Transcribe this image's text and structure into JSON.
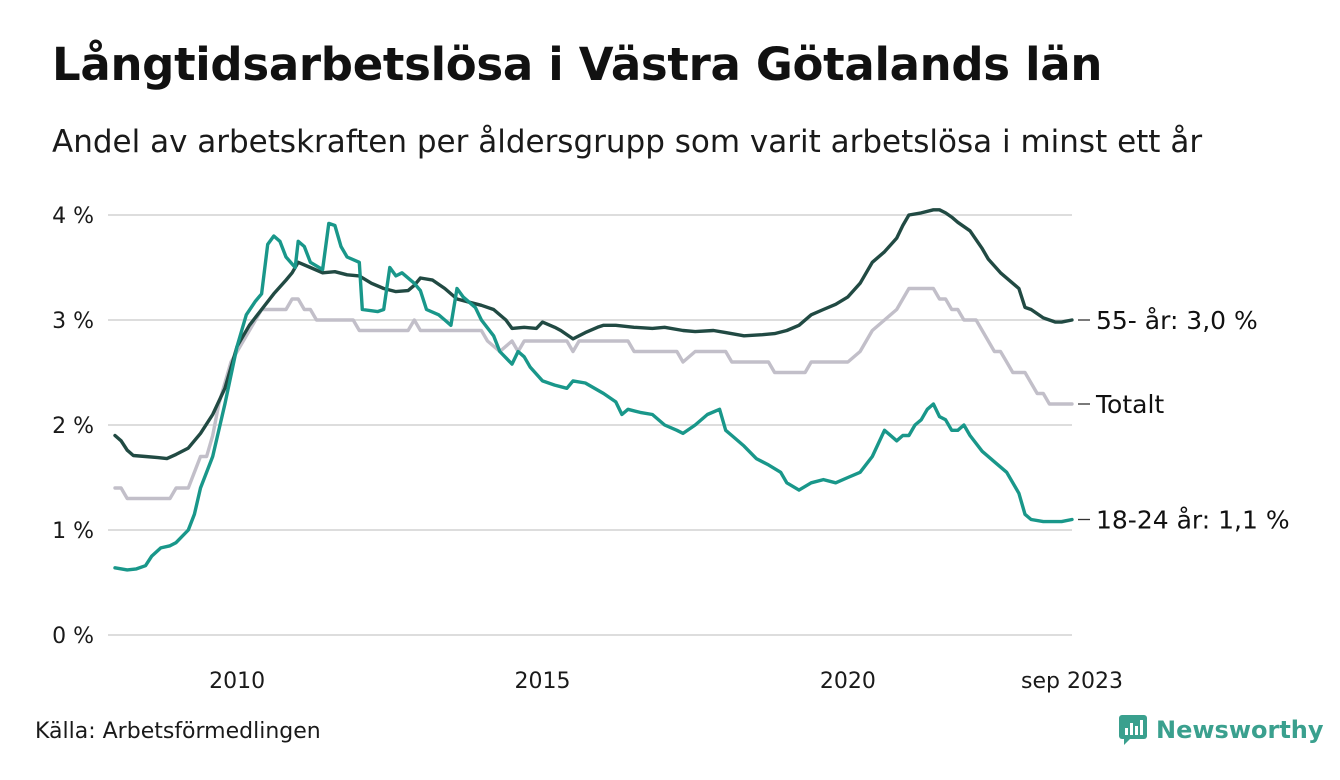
{
  "header": {
    "title": "Långtidsarbetslösa i Västra Götalands län",
    "subtitle": "Andel av arbetskraften per åldersgrupp som varit arbetslösa i minst ett år"
  },
  "footer": {
    "source": "Källa: Arbetsförmedlingen",
    "brand": "Newsworthy"
  },
  "colors": {
    "age55": "#214a43",
    "total": "#c2bfc9",
    "age18": "#19978a",
    "grid": "#dddddd",
    "brand": "#3aa08e"
  },
  "chart_data": {
    "type": "line",
    "title": "Långtidsarbetslösa i Västra Götalands län",
    "subtitle": "Andel av arbetskraften per åldersgrupp som varit arbetslösa i minst ett år",
    "xlabel": "",
    "ylabel": "",
    "xlim": [
      2008.0,
      2023.67
    ],
    "ylim": [
      0,
      4
    ],
    "grid": true,
    "y_ticks": [
      {
        "value": 0,
        "label": "0 %"
      },
      {
        "value": 1,
        "label": "1 %"
      },
      {
        "value": 2,
        "label": "2 %"
      },
      {
        "value": 3,
        "label": "3 %"
      },
      {
        "value": 4,
        "label": "4 %"
      }
    ],
    "x_ticks": [
      {
        "value": 2010,
        "label": "2010"
      },
      {
        "value": 2015,
        "label": "2015"
      },
      {
        "value": 2020,
        "label": "2020"
      },
      {
        "value": 2023.67,
        "label": "sep 2023"
      }
    ],
    "series": [
      {
        "name": "Totalt",
        "label": "Totalt",
        "color_key": "total",
        "points": [
          [
            2008.0,
            1.4
          ],
          [
            2008.1,
            1.4
          ],
          [
            2008.2,
            1.3
          ],
          [
            2008.5,
            1.3
          ],
          [
            2008.8,
            1.3
          ],
          [
            2008.9,
            1.3
          ],
          [
            2009.0,
            1.4
          ],
          [
            2009.2,
            1.4
          ],
          [
            2009.4,
            1.7
          ],
          [
            2009.5,
            1.7
          ],
          [
            2009.6,
            1.9
          ],
          [
            2009.7,
            2.2
          ],
          [
            2009.8,
            2.4
          ],
          [
            2009.9,
            2.6
          ],
          [
            2010.0,
            2.7
          ],
          [
            2010.2,
            2.9
          ],
          [
            2010.3,
            3.0
          ],
          [
            2010.4,
            3.1
          ],
          [
            2010.6,
            3.1
          ],
          [
            2010.8,
            3.1
          ],
          [
            2010.9,
            3.2
          ],
          [
            2011.0,
            3.2
          ],
          [
            2011.1,
            3.1
          ],
          [
            2011.2,
            3.1
          ],
          [
            2011.3,
            3.0
          ],
          [
            2011.6,
            3.0
          ],
          [
            2011.8,
            3.0
          ],
          [
            2011.9,
            3.0
          ],
          [
            2012.0,
            2.9
          ],
          [
            2012.3,
            2.9
          ],
          [
            2012.6,
            2.9
          ],
          [
            2012.8,
            2.9
          ],
          [
            2012.9,
            3.0
          ],
          [
            2013.0,
            2.9
          ],
          [
            2013.3,
            2.9
          ],
          [
            2013.6,
            2.9
          ],
          [
            2013.9,
            2.9
          ],
          [
            2014.0,
            2.9
          ],
          [
            2014.1,
            2.8
          ],
          [
            2014.3,
            2.7
          ],
          [
            2014.5,
            2.8
          ],
          [
            2014.6,
            2.7
          ],
          [
            2014.7,
            2.8
          ],
          [
            2015.0,
            2.8
          ],
          [
            2015.4,
            2.8
          ],
          [
            2015.5,
            2.7
          ],
          [
            2015.6,
            2.8
          ],
          [
            2016.0,
            2.8
          ],
          [
            2016.4,
            2.8
          ],
          [
            2016.5,
            2.7
          ],
          [
            2016.9,
            2.7
          ],
          [
            2017.2,
            2.7
          ],
          [
            2017.3,
            2.6
          ],
          [
            2017.5,
            2.7
          ],
          [
            2018.0,
            2.7
          ],
          [
            2018.1,
            2.6
          ],
          [
            2018.5,
            2.6
          ],
          [
            2018.7,
            2.6
          ],
          [
            2018.8,
            2.5
          ],
          [
            2019.0,
            2.5
          ],
          [
            2019.3,
            2.5
          ],
          [
            2019.4,
            2.6
          ],
          [
            2019.6,
            2.6
          ],
          [
            2020.0,
            2.6
          ],
          [
            2020.2,
            2.7
          ],
          [
            2020.3,
            2.8
          ],
          [
            2020.4,
            2.9
          ],
          [
            2020.6,
            3.0
          ],
          [
            2020.8,
            3.1
          ],
          [
            2020.9,
            3.2
          ],
          [
            2021.0,
            3.3
          ],
          [
            2021.2,
            3.3
          ],
          [
            2021.4,
            3.3
          ],
          [
            2021.5,
            3.2
          ],
          [
            2021.6,
            3.2
          ],
          [
            2021.7,
            3.1
          ],
          [
            2021.8,
            3.1
          ],
          [
            2021.9,
            3.0
          ],
          [
            2022.1,
            3.0
          ],
          [
            2022.2,
            2.9
          ],
          [
            2022.3,
            2.8
          ],
          [
            2022.4,
            2.7
          ],
          [
            2022.5,
            2.7
          ],
          [
            2022.6,
            2.6
          ],
          [
            2022.7,
            2.5
          ],
          [
            2022.9,
            2.5
          ],
          [
            2023.0,
            2.4
          ],
          [
            2023.1,
            2.3
          ],
          [
            2023.2,
            2.3
          ],
          [
            2023.3,
            2.2
          ],
          [
            2023.5,
            2.2
          ],
          [
            2023.67,
            2.2
          ]
        ]
      },
      {
        "name": "55- år",
        "label": "55- år: 3,0 %",
        "color_key": "age55",
        "points": [
          [
            2008.0,
            1.9
          ],
          [
            2008.1,
            1.85
          ],
          [
            2008.2,
            1.76
          ],
          [
            2008.3,
            1.71
          ],
          [
            2008.5,
            1.7
          ],
          [
            2008.7,
            1.69
          ],
          [
            2008.85,
            1.68
          ],
          [
            2009.0,
            1.72
          ],
          [
            2009.2,
            1.78
          ],
          [
            2009.4,
            1.92
          ],
          [
            2009.6,
            2.1
          ],
          [
            2009.8,
            2.35
          ],
          [
            2010.0,
            2.75
          ],
          [
            2010.2,
            2.95
          ],
          [
            2010.4,
            3.1
          ],
          [
            2010.6,
            3.25
          ],
          [
            2010.8,
            3.38
          ],
          [
            2010.9,
            3.45
          ],
          [
            2011.0,
            3.55
          ],
          [
            2011.2,
            3.5
          ],
          [
            2011.4,
            3.45
          ],
          [
            2011.6,
            3.46
          ],
          [
            2011.8,
            3.43
          ],
          [
            2012.0,
            3.42
          ],
          [
            2012.2,
            3.35
          ],
          [
            2012.4,
            3.3
          ],
          [
            2012.6,
            3.27
          ],
          [
            2012.8,
            3.28
          ],
          [
            2012.9,
            3.33
          ],
          [
            2013.0,
            3.4
          ],
          [
            2013.2,
            3.38
          ],
          [
            2013.4,
            3.3
          ],
          [
            2013.6,
            3.2
          ],
          [
            2013.8,
            3.17
          ],
          [
            2014.0,
            3.14
          ],
          [
            2014.2,
            3.1
          ],
          [
            2014.4,
            3.0
          ],
          [
            2014.5,
            2.92
          ],
          [
            2014.7,
            2.93
          ],
          [
            2014.9,
            2.92
          ],
          [
            2015.0,
            2.98
          ],
          [
            2015.2,
            2.93
          ],
          [
            2015.3,
            2.9
          ],
          [
            2015.5,
            2.82
          ],
          [
            2015.7,
            2.88
          ],
          [
            2015.9,
            2.93
          ],
          [
            2016.0,
            2.95
          ],
          [
            2016.2,
            2.95
          ],
          [
            2016.5,
            2.93
          ],
          [
            2016.8,
            2.92
          ],
          [
            2017.0,
            2.93
          ],
          [
            2017.3,
            2.9
          ],
          [
            2017.5,
            2.89
          ],
          [
            2017.8,
            2.9
          ],
          [
            2018.0,
            2.88
          ],
          [
            2018.3,
            2.85
          ],
          [
            2018.6,
            2.86
          ],
          [
            2018.8,
            2.87
          ],
          [
            2019.0,
            2.9
          ],
          [
            2019.2,
            2.95
          ],
          [
            2019.4,
            3.05
          ],
          [
            2019.6,
            3.1
          ],
          [
            2019.8,
            3.15
          ],
          [
            2020.0,
            3.22
          ],
          [
            2020.2,
            3.35
          ],
          [
            2020.4,
            3.55
          ],
          [
            2020.6,
            3.65
          ],
          [
            2020.8,
            3.78
          ],
          [
            2020.9,
            3.9
          ],
          [
            2021.0,
            4.0
          ],
          [
            2021.2,
            4.02
          ],
          [
            2021.4,
            4.05
          ],
          [
            2021.5,
            4.05
          ],
          [
            2021.6,
            4.02
          ],
          [
            2021.7,
            3.98
          ],
          [
            2021.8,
            3.93
          ],
          [
            2022.0,
            3.85
          ],
          [
            2022.2,
            3.68
          ],
          [
            2022.3,
            3.58
          ],
          [
            2022.5,
            3.45
          ],
          [
            2022.7,
            3.35
          ],
          [
            2022.8,
            3.3
          ],
          [
            2022.9,
            3.12
          ],
          [
            2023.0,
            3.1
          ],
          [
            2023.2,
            3.02
          ],
          [
            2023.4,
            2.98
          ],
          [
            2023.5,
            2.98
          ],
          [
            2023.67,
            3.0
          ]
        ]
      },
      {
        "name": "18-24 år",
        "label": "18-24 år: 1,1 %",
        "color_key": "age18",
        "points": [
          [
            2008.0,
            0.64
          ],
          [
            2008.2,
            0.62
          ],
          [
            2008.35,
            0.63
          ],
          [
            2008.5,
            0.66
          ],
          [
            2008.6,
            0.75
          ],
          [
            2008.75,
            0.83
          ],
          [
            2008.9,
            0.85
          ],
          [
            2009.0,
            0.88
          ],
          [
            2009.2,
            1.0
          ],
          [
            2009.3,
            1.15
          ],
          [
            2009.4,
            1.4
          ],
          [
            2009.6,
            1.7
          ],
          [
            2009.8,
            2.2
          ],
          [
            2010.0,
            2.75
          ],
          [
            2010.15,
            3.05
          ],
          [
            2010.3,
            3.18
          ],
          [
            2010.4,
            3.25
          ],
          [
            2010.5,
            3.72
          ],
          [
            2010.6,
            3.8
          ],
          [
            2010.7,
            3.75
          ],
          [
            2010.8,
            3.6
          ],
          [
            2010.95,
            3.5
          ],
          [
            2011.0,
            3.75
          ],
          [
            2011.1,
            3.7
          ],
          [
            2011.2,
            3.55
          ],
          [
            2011.4,
            3.48
          ],
          [
            2011.5,
            3.92
          ],
          [
            2011.6,
            3.9
          ],
          [
            2011.7,
            3.7
          ],
          [
            2011.8,
            3.6
          ],
          [
            2012.0,
            3.55
          ],
          [
            2012.05,
            3.1
          ],
          [
            2012.3,
            3.08
          ],
          [
            2012.4,
            3.1
          ],
          [
            2012.5,
            3.5
          ],
          [
            2012.6,
            3.42
          ],
          [
            2012.7,
            3.45
          ],
          [
            2012.9,
            3.35
          ],
          [
            2013.0,
            3.28
          ],
          [
            2013.1,
            3.1
          ],
          [
            2013.3,
            3.05
          ],
          [
            2013.4,
            3.0
          ],
          [
            2013.5,
            2.95
          ],
          [
            2013.6,
            3.3
          ],
          [
            2013.7,
            3.22
          ],
          [
            2013.9,
            3.12
          ],
          [
            2014.0,
            3.0
          ],
          [
            2014.2,
            2.85
          ],
          [
            2014.3,
            2.7
          ],
          [
            2014.5,
            2.58
          ],
          [
            2014.6,
            2.7
          ],
          [
            2014.7,
            2.65
          ],
          [
            2014.8,
            2.55
          ],
          [
            2015.0,
            2.42
          ],
          [
            2015.2,
            2.38
          ],
          [
            2015.4,
            2.35
          ],
          [
            2015.5,
            2.42
          ],
          [
            2015.7,
            2.4
          ],
          [
            2016.0,
            2.3
          ],
          [
            2016.2,
            2.22
          ],
          [
            2016.3,
            2.1
          ],
          [
            2016.4,
            2.15
          ],
          [
            2016.6,
            2.12
          ],
          [
            2016.8,
            2.1
          ],
          [
            2017.0,
            2.0
          ],
          [
            2017.2,
            1.95
          ],
          [
            2017.3,
            1.92
          ],
          [
            2017.5,
            2.0
          ],
          [
            2017.7,
            2.1
          ],
          [
            2017.9,
            2.15
          ],
          [
            2018.0,
            1.95
          ],
          [
            2018.1,
            1.9
          ],
          [
            2018.3,
            1.8
          ],
          [
            2018.5,
            1.68
          ],
          [
            2018.7,
            1.62
          ],
          [
            2018.9,
            1.55
          ],
          [
            2019.0,
            1.45
          ],
          [
            2019.2,
            1.38
          ],
          [
            2019.4,
            1.45
          ],
          [
            2019.6,
            1.48
          ],
          [
            2019.8,
            1.45
          ],
          [
            2020.0,
            1.5
          ],
          [
            2020.2,
            1.55
          ],
          [
            2020.4,
            1.7
          ],
          [
            2020.6,
            1.95
          ],
          [
            2020.8,
            1.85
          ],
          [
            2020.9,
            1.9
          ],
          [
            2021.0,
            1.9
          ],
          [
            2021.1,
            2.0
          ],
          [
            2021.2,
            2.05
          ],
          [
            2021.3,
            2.15
          ],
          [
            2021.4,
            2.2
          ],
          [
            2021.5,
            2.08
          ],
          [
            2021.6,
            2.05
          ],
          [
            2021.7,
            1.95
          ],
          [
            2021.8,
            1.95
          ],
          [
            2021.9,
            2.0
          ],
          [
            2022.0,
            1.9
          ],
          [
            2022.2,
            1.75
          ],
          [
            2022.4,
            1.65
          ],
          [
            2022.6,
            1.55
          ],
          [
            2022.8,
            1.35
          ],
          [
            2022.9,
            1.15
          ],
          [
            2023.0,
            1.1
          ],
          [
            2023.2,
            1.08
          ],
          [
            2023.4,
            1.08
          ],
          [
            2023.5,
            1.08
          ],
          [
            2023.67,
            1.1
          ]
        ]
      }
    ]
  }
}
